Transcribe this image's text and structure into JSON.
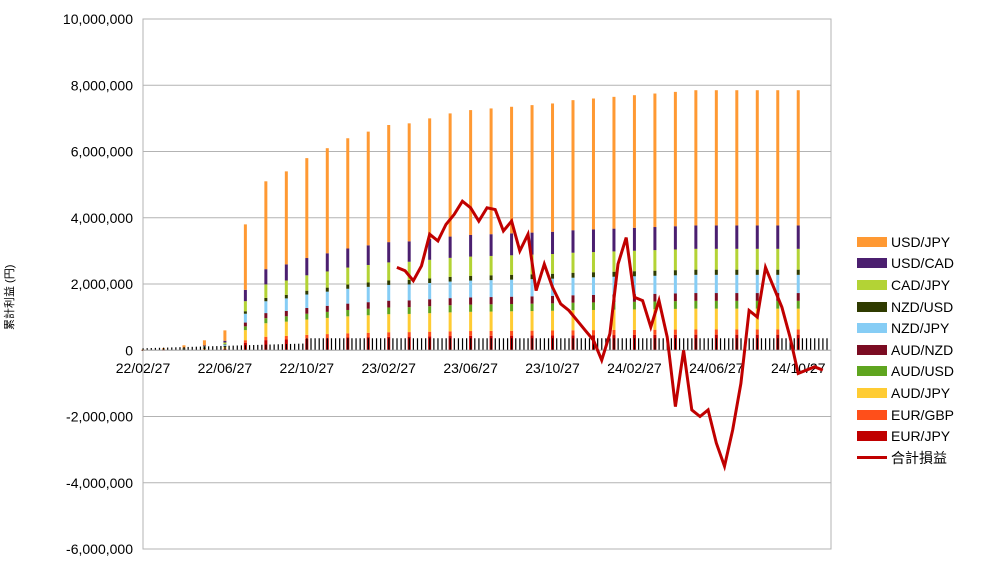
{
  "chart_data": {
    "type": "bar",
    "stacked": true,
    "ylabel": "累計利益\n(円)",
    "ylim": [
      -6000000,
      10000000
    ],
    "yticks": [
      -6000000,
      -4000000,
      -2000000,
      0,
      2000000,
      4000000,
      6000000,
      8000000,
      10000000
    ],
    "ytick_labels": [
      "-6,000,000",
      "-4,000,000",
      "-2,000,000",
      "0",
      "2,000,000",
      "4,000,000",
      "6,000,000",
      "8,000,000",
      "10,000,000"
    ],
    "xtick_labels": [
      "22/02/27",
      "22/06/27",
      "22/10/27",
      "23/02/27",
      "23/06/27",
      "23/10/27",
      "24/02/27",
      "24/06/27",
      "24/10/27"
    ],
    "grid": true,
    "legend_position": "right",
    "series_colors": {
      "USD/JPY": "#ff9933",
      "USD/CAD": "#4b1f6f",
      "CAD/JPY": "#b3d335",
      "NZD/USD": "#2f3b00",
      "NZD/JPY": "#86cdf5",
      "AUD/NZD": "#7b0c22",
      "AUD/USD": "#5fa51f",
      "AUD/JPY": "#ffcc33",
      "EUR/GBP": "#ff4f1a",
      "EUR/JPY": "#c00000",
      "合計損益": "#c00000"
    },
    "legend": [
      "USD/JPY",
      "USD/CAD",
      "CAD/JPY",
      "NZD/USD",
      "NZD/JPY",
      "AUD/NZD",
      "AUD/USD",
      "AUD/JPY",
      "EUR/GBP",
      "EUR/JPY",
      "合計損益"
    ],
    "stacked_bars": {
      "x_index": [
        0,
        5,
        10,
        15,
        20,
        25,
        30,
        35,
        40,
        45,
        50,
        55,
        60,
        65,
        70,
        75,
        80,
        85,
        90,
        95,
        100,
        105,
        110,
        115,
        120,
        125,
        130,
        135,
        140,
        145,
        150,
        155,
        160
      ],
      "totals": [
        20000,
        60000,
        150000,
        300000,
        600000,
        3800000,
        5100000,
        5400000,
        5800000,
        6100000,
        6400000,
        6600000,
        6800000,
        6850000,
        7000000,
        7150000,
        7250000,
        7300000,
        7350000,
        7400000,
        7450000,
        7550000,
        7600000,
        7650000,
        7700000,
        7750000,
        7800000,
        7850000,
        7850000,
        7850000,
        7850000,
        7850000,
        7850000
      ]
    },
    "total_line": {
      "name": "合計損益",
      "x_index": [
        62,
        64,
        66,
        68,
        70,
        72,
        74,
        76,
        78,
        80,
        82,
        84,
        86,
        88,
        90,
        92,
        94,
        96,
        98,
        100,
        102,
        104,
        106,
        108,
        110,
        112,
        114,
        116,
        118,
        120,
        122,
        124,
        126,
        128,
        130,
        132,
        134,
        136,
        138,
        140,
        142,
        144,
        146,
        148,
        150,
        152,
        154,
        156,
        158,
        160,
        162,
        164,
        166
      ],
      "values": [
        2500000,
        2400000,
        2100000,
        2550000,
        3500000,
        3300000,
        3800000,
        4100000,
        4500000,
        4300000,
        3900000,
        4300000,
        4250000,
        3600000,
        3900000,
        3000000,
        3500000,
        1800000,
        2600000,
        1900000,
        1400000,
        1200000,
        900000,
        600000,
        300000,
        -300000,
        500000,
        2600000,
        3400000,
        1600000,
        1500000,
        700000,
        1500000,
        400000,
        -1700000,
        0,
        -1800000,
        -2000000,
        -1800000,
        -2800000,
        -3500000,
        -2400000,
        -1000000,
        1200000,
        1000000,
        2500000,
        1900000,
        1300000,
        400000,
        -700000,
        -600000,
        -500000,
        -600000
      ]
    }
  }
}
